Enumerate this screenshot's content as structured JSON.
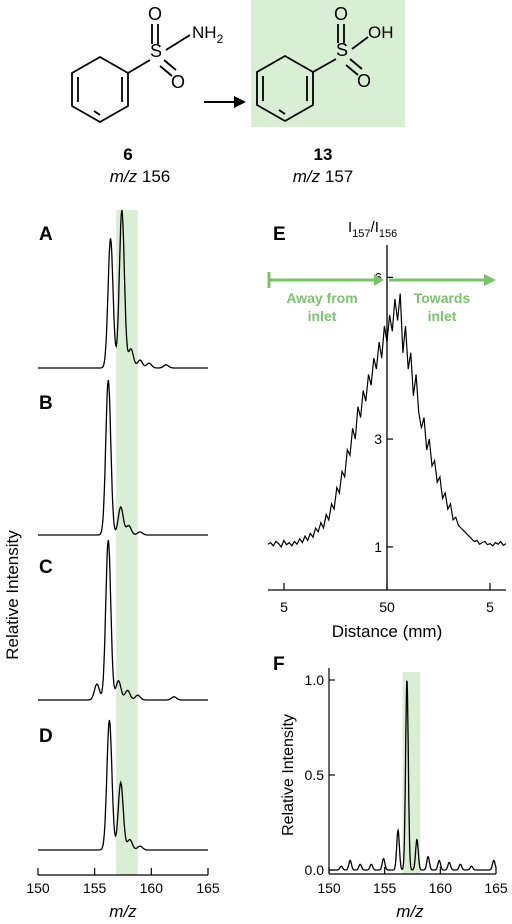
{
  "scheme": {
    "reactant": {
      "number": "6",
      "mz_prefix": "m/z",
      "mz_value": "156",
      "group_label": "NH2"
    },
    "product": {
      "number": "13",
      "mz_prefix": "m/z",
      "mz_value": "157",
      "group_label": "OH"
    },
    "atom_S": "S",
    "atom_O": "O",
    "highlight_color": "#d9efd3"
  },
  "chart_data": [
    {
      "type": "line",
      "panels": [
        "A",
        "B",
        "C",
        "D"
      ],
      "ylabel": "Relative Intensity",
      "xlabel": "m/z",
      "xticks": [
        "150",
        "155",
        "160",
        "165"
      ],
      "xlim": [
        150,
        165
      ],
      "highlight_band": [
        156.9,
        158.8
      ],
      "series": [
        {
          "panel": "A",
          "peaks": [
            [
              155.2,
              0.0
            ],
            [
              156.4,
              0.82
            ],
            [
              157.4,
              1.0
            ],
            [
              158.2,
              0.12
            ],
            [
              159.0,
              0.05
            ],
            [
              159.8,
              0.03
            ],
            [
              161.3,
              0.02
            ]
          ]
        },
        {
          "panel": "B",
          "peaks": [
            [
              156.2,
              1.0
            ],
            [
              157.3,
              0.18
            ],
            [
              158.0,
              0.06
            ],
            [
              159.0,
              0.02
            ]
          ]
        },
        {
          "panel": "C",
          "peaks": [
            [
              155.2,
              0.1
            ],
            [
              156.2,
              1.0
            ],
            [
              157.1,
              0.12
            ],
            [
              157.9,
              0.06
            ],
            [
              158.8,
              0.03
            ],
            [
              162.0,
              0.02
            ]
          ]
        },
        {
          "panel": "D",
          "peaks": [
            [
              156.3,
              1.0
            ],
            [
              157.3,
              0.52
            ],
            [
              158.1,
              0.08
            ],
            [
              159.0,
              0.03
            ]
          ]
        }
      ]
    },
    {
      "type": "line",
      "panel": "E",
      "title": "I157/I156",
      "title_main": "I",
      "title_sub1": "157",
      "title_sep": "/I",
      "title_sub2": "156",
      "xlabel": "Distance (mm)",
      "xticks": [
        "5",
        "50",
        "5"
      ],
      "yticks": [
        "1",
        "3",
        "6"
      ],
      "ylim": [
        0.2,
        6.6
      ],
      "annotations": [
        "Away from",
        "inlet",
        "Towards",
        "inlet"
      ],
      "values": [
        1.05,
        1.08,
        1.02,
        1.1,
        1.06,
        1.0,
        1.12,
        1.04,
        1.08,
        1.02,
        1.1,
        1.05,
        1.15,
        1.08,
        1.2,
        1.12,
        1.25,
        1.18,
        1.35,
        1.28,
        1.45,
        1.35,
        1.6,
        1.5,
        1.8,
        1.7,
        2.1,
        2.0,
        2.4,
        2.3,
        2.8,
        2.7,
        3.2,
        3.0,
        3.6,
        3.4,
        3.9,
        3.7,
        4.2,
        4.0,
        4.5,
        4.3,
        4.8,
        4.5,
        5.1,
        4.8,
        5.3,
        5.0,
        5.6,
        5.2,
        5.7,
        4.6,
        5.1,
        4.3,
        4.6,
        3.8,
        4.2,
        3.5,
        3.2,
        3.4,
        2.8,
        3.0,
        2.5,
        2.6,
        2.2,
        2.3,
        1.9,
        2.0,
        1.7,
        1.8,
        1.5,
        1.55,
        1.4,
        1.35,
        1.3,
        1.25,
        1.2,
        1.15,
        1.1,
        1.12,
        1.05,
        1.08,
        1.1,
        1.04,
        1.06,
        1.02,
        1.08,
        1.05,
        1.1,
        1.03,
        1.06
      ]
    },
    {
      "type": "line",
      "panel": "F",
      "ylabel": "Relative Intensity",
      "xlabel": "m/z",
      "xticks": [
        "150",
        "155",
        "160",
        "165"
      ],
      "yticks": [
        "0.0",
        "0.5",
        "1.0"
      ],
      "xlim": [
        150,
        165
      ],
      "ylim": [
        0,
        1.0
      ],
      "highlight_band": [
        156.6,
        158.2
      ],
      "peaks": [
        [
          151.1,
          0.02
        ],
        [
          151.9,
          0.05
        ],
        [
          152.8,
          0.03
        ],
        [
          153.8,
          0.03
        ],
        [
          154.9,
          0.06
        ],
        [
          156.2,
          0.21
        ],
        [
          157.0,
          1.0
        ],
        [
          157.9,
          0.16
        ],
        [
          158.9,
          0.07
        ],
        [
          159.9,
          0.05
        ],
        [
          160.8,
          0.04
        ],
        [
          161.8,
          0.03
        ],
        [
          162.8,
          0.02
        ],
        [
          164.8,
          0.05
        ]
      ]
    }
  ]
}
